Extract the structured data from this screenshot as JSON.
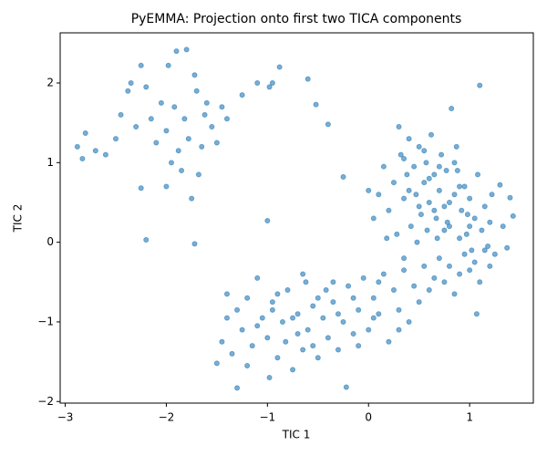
{
  "chart_data": {
    "type": "scatter",
    "title": "PyEMMA: Projection onto first two TICA components",
    "x_label": "TIC 1",
    "y_label": "TIC 2",
    "color": "#1f77b4",
    "alpha": 0.6,
    "grid": false,
    "xlim": [
      -3.05,
      1.63
    ],
    "ylim": [
      -2.02,
      2.63
    ],
    "xticks": [
      {
        "value": -3,
        "label": "−3"
      },
      {
        "value": -2,
        "label": "−2"
      },
      {
        "value": -1,
        "label": "−1"
      },
      0,
      1
    ],
    "yticks": [
      {
        "value": -2,
        "label": "−2"
      },
      {
        "value": -1,
        "label": "−1"
      },
      0,
      1,
      2
    ],
    "x": [
      -2.88,
      -2.83,
      -2.8,
      -2.7,
      -2.6,
      -2.5,
      -2.45,
      -2.38,
      -2.3,
      -2.25,
      -2.25,
      -2.2,
      -2.15,
      -2.1,
      -2.05,
      -2.0,
      -1.98,
      -1.95,
      -1.92,
      -1.9,
      -1.88,
      -1.85,
      -1.82,
      -1.8,
      -1.78,
      -1.75,
      -1.72,
      -1.7,
      -1.68,
      -1.65,
      -1.62,
      -1.6,
      -1.55,
      -1.5,
      -1.45,
      -1.4,
      -2.2,
      -1.72,
      -2.35,
      -2.0,
      -1.25,
      -1.1,
      -0.98,
      -0.95,
      -0.88,
      -0.6,
      -0.52,
      -0.4,
      -1.0,
      -0.25,
      0.1,
      0.15,
      0.2,
      0.25,
      0.3,
      0.32,
      0.35,
      0.38,
      0.4,
      0.42,
      0.45,
      0.47,
      0.5,
      0.52,
      0.55,
      0.57,
      0.6,
      0.62,
      0.65,
      0.67,
      0.7,
      0.72,
      0.75,
      0.77,
      0.8,
      0.82,
      0.85,
      0.87,
      0.9,
      0.92,
      0.95,
      0.97,
      1.0,
      1.02,
      1.05,
      1.08,
      1.1,
      1.12,
      1.15,
      1.18,
      1.2,
      1.22,
      1.25,
      1.3,
      1.33,
      1.37,
      1.4,
      1.43,
      0.05,
      0.0,
      0.18,
      0.28,
      0.48,
      0.58,
      0.68,
      0.78,
      0.88,
      0.98,
      0.35,
      0.6,
      0.5,
      0.7,
      0.8,
      0.9,
      1.0,
      0.4,
      0.65,
      0.85,
      0.55,
      0.75,
      -1.5,
      -1.45,
      -1.4,
      -1.35,
      -1.3,
      -1.25,
      -1.2,
      -1.15,
      -1.1,
      -1.05,
      -1.0,
      -0.98,
      -0.95,
      -0.9,
      -0.85,
      -0.82,
      -0.8,
      -0.75,
      -0.7,
      -0.65,
      -0.62,
      -0.6,
      -0.55,
      -0.5,
      -0.45,
      -0.42,
      -0.4,
      -0.35,
      -0.3,
      -0.25,
      -0.22,
      -0.2,
      -0.15,
      -0.1,
      -0.05,
      0.0,
      0.05,
      0.1,
      0.15,
      0.2,
      0.25,
      0.3,
      0.35,
      0.4,
      0.45,
      0.5,
      0.55,
      0.6,
      0.65,
      0.7,
      0.75,
      0.8,
      0.85,
      0.9,
      0.95,
      1.0,
      1.05,
      1.1,
      1.15,
      1.2,
      -1.3,
      -1.2,
      -1.1,
      -0.9,
      -0.7,
      -0.5,
      -0.3,
      -0.1,
      0.1,
      0.3,
      -0.95,
      -0.75,
      -0.55,
      -0.35,
      -0.15,
      0.05,
      -1.4,
      0.35,
      -0.65,
      1.07
    ],
    "y": [
      1.2,
      1.05,
      1.37,
      1.15,
      1.1,
      1.3,
      1.6,
      1.9,
      1.45,
      0.68,
      2.22,
      1.95,
      1.55,
      1.25,
      1.75,
      1.4,
      2.22,
      1.0,
      1.7,
      2.4,
      1.15,
      0.9,
      1.55,
      2.42,
      1.3,
      0.55,
      2.1,
      1.9,
      0.85,
      1.2,
      1.6,
      1.75,
      1.45,
      1.25,
      1.7,
      1.55,
      0.03,
      -0.02,
      2.0,
      0.7,
      1.85,
      2.0,
      1.95,
      2.0,
      2.2,
      2.05,
      1.73,
      1.48,
      0.27,
      0.82,
      0.6,
      0.95,
      0.4,
      0.75,
      1.45,
      1.1,
      0.55,
      0.85,
      1.3,
      0.2,
      0.95,
      0.6,
      1.2,
      0.35,
      0.75,
      1.0,
      0.5,
      1.35,
      0.85,
      0.3,
      0.65,
      1.1,
      0.45,
      0.9,
      0.2,
      1.68,
      0.6,
      1.2,
      0.05,
      0.4,
      0.7,
      0.1,
      0.55,
      -0.1,
      0.3,
      0.85,
      1.97,
      0.15,
      0.45,
      -0.05,
      0.25,
      0.6,
      -0.15,
      0.72,
      0.2,
      -0.07,
      0.56,
      0.33,
      0.3,
      0.65,
      0.05,
      0.1,
      0.0,
      0.15,
      0.05,
      0.25,
      0.9,
      0.35,
      1.05,
      0.8,
      0.45,
      0.95,
      0.5,
      0.7,
      0.2,
      0.65,
      0.4,
      1.0,
      1.15,
      0.15,
      -1.52,
      -1.25,
      -0.95,
      -1.4,
      -1.83,
      -1.1,
      -0.7,
      -1.3,
      -0.45,
      -0.95,
      -1.2,
      -1.7,
      -0.75,
      -1.45,
      -1.0,
      -1.25,
      -0.6,
      -1.6,
      -0.9,
      -1.35,
      -0.5,
      -1.1,
      -0.8,
      -1.45,
      -0.95,
      -0.6,
      -1.2,
      -0.75,
      -1.35,
      -1.0,
      -1.82,
      -0.55,
      -1.15,
      -0.85,
      -0.45,
      -1.1,
      -0.7,
      -0.9,
      -0.4,
      -1.25,
      -0.6,
      -0.85,
      -0.35,
      -1.0,
      -0.55,
      -0.75,
      -0.3,
      -0.6,
      -0.45,
      -0.2,
      -0.5,
      -0.3,
      -0.65,
      -0.4,
      -0.15,
      -0.35,
      -0.25,
      -0.5,
      -0.1,
      -0.3,
      -0.85,
      -1.55,
      -1.05,
      -0.65,
      -1.15,
      -0.7,
      -0.9,
      -1.3,
      -0.5,
      -1.1,
      -0.85,
      -0.95,
      -1.3,
      -0.5,
      -0.7,
      -0.95,
      -0.65,
      -0.2,
      -0.4,
      -0.9
    ]
  }
}
